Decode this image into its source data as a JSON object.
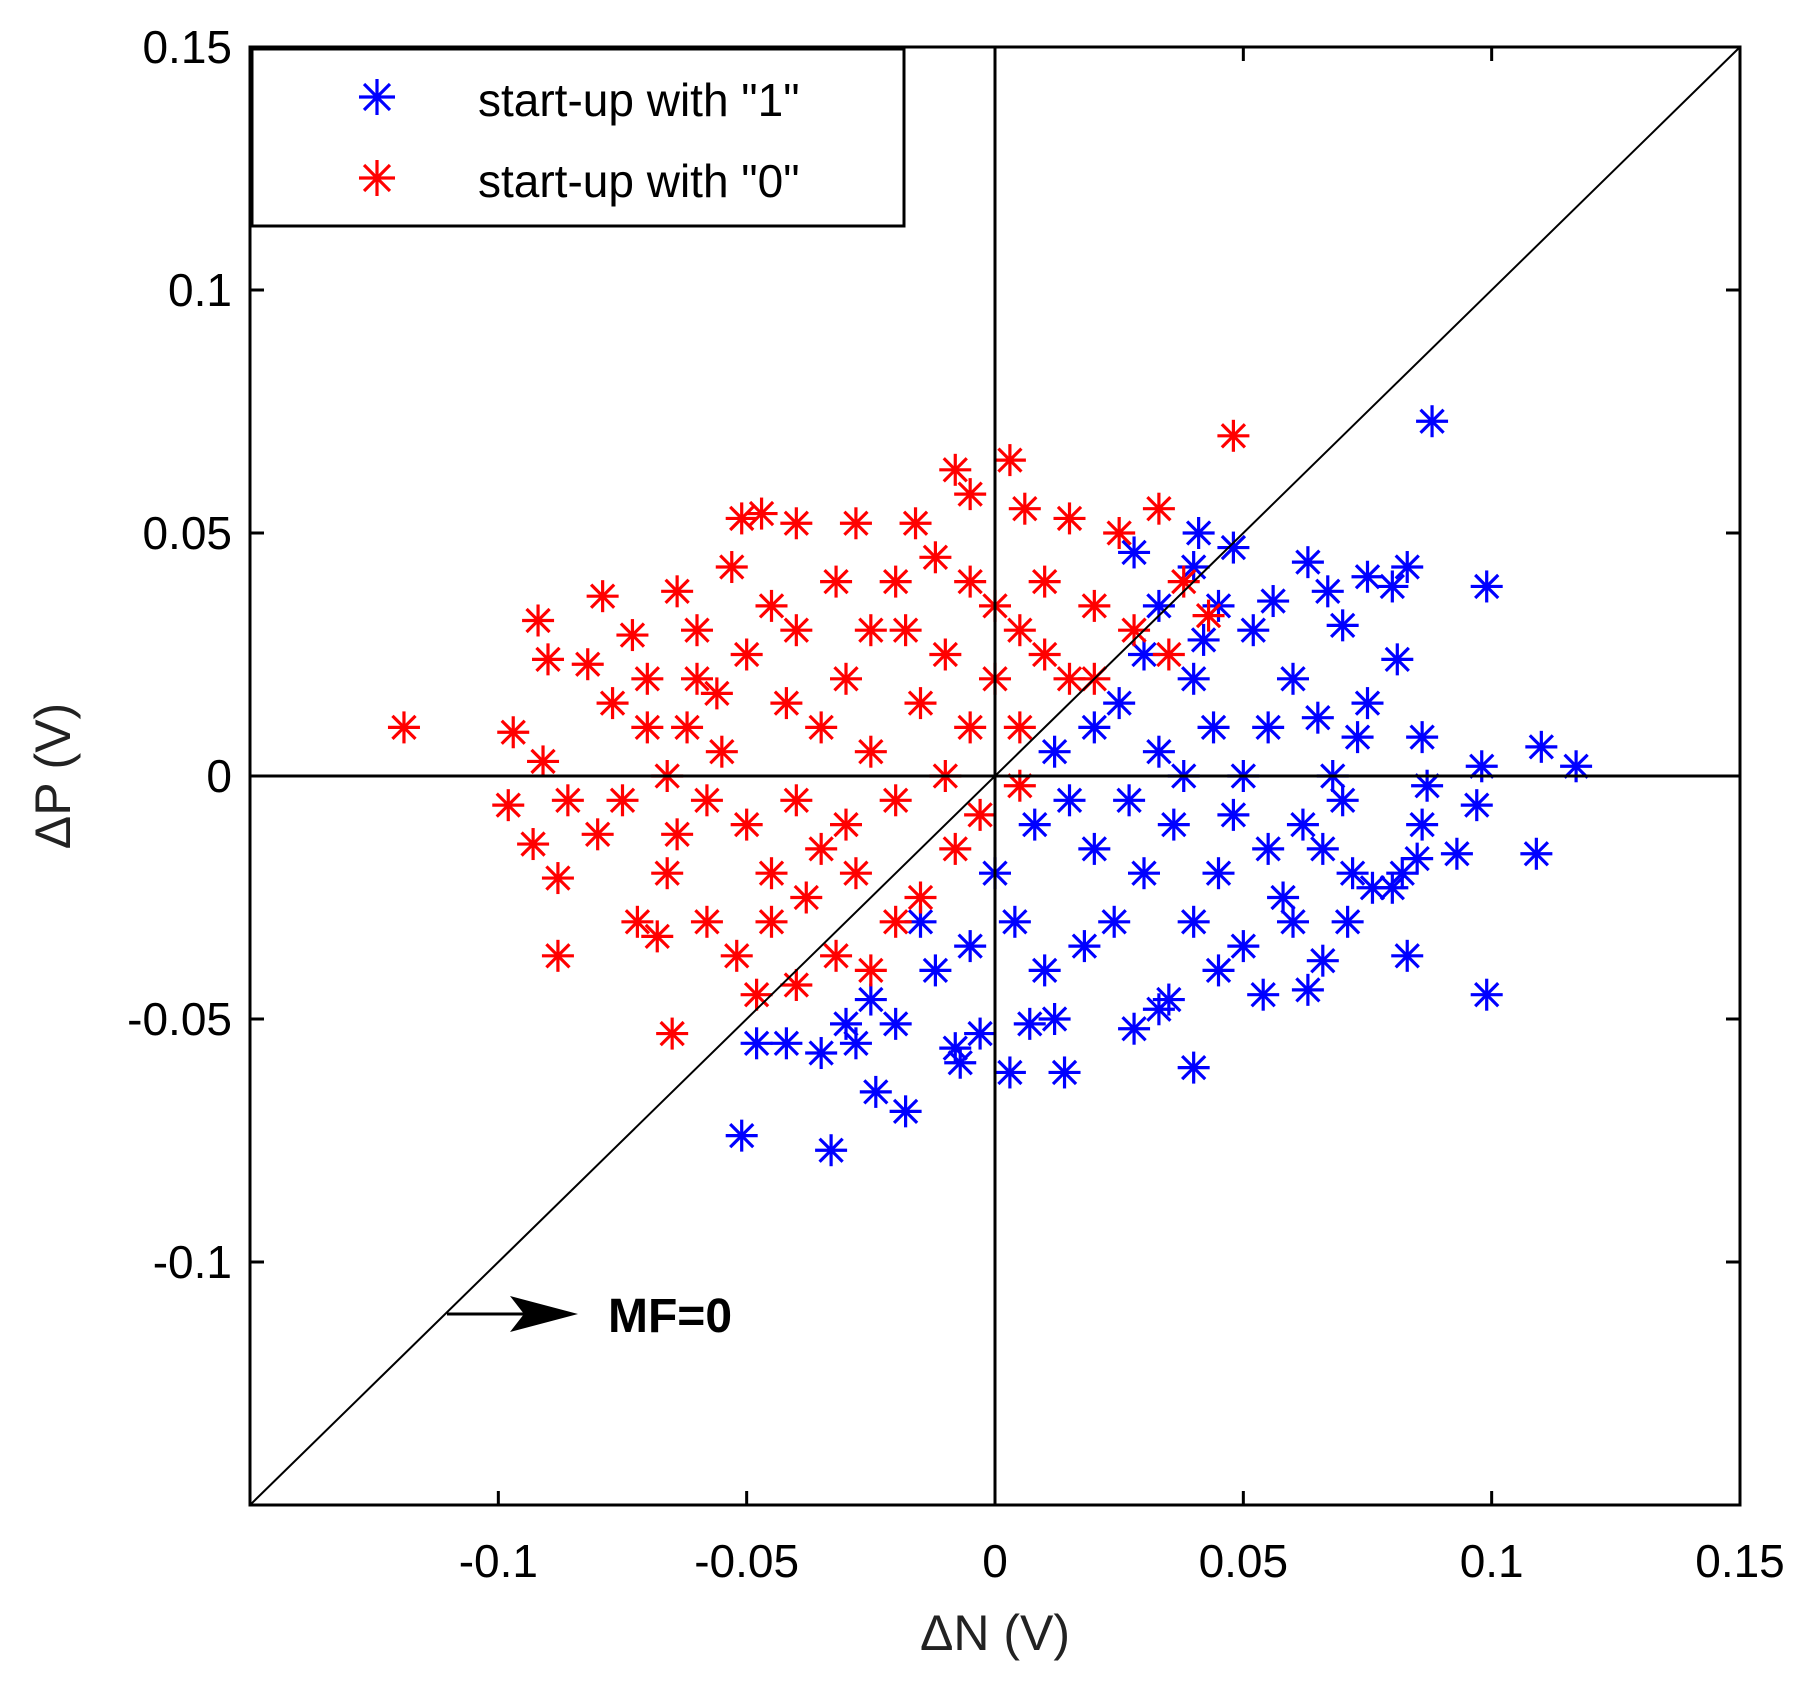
{
  "chart_data": {
    "type": "scatter",
    "title": "",
    "xlabel": "ΔN (V)",
    "ylabel": "ΔP (V)",
    "xlim": [
      -0.15,
      0.15
    ],
    "ylim": [
      -0.15,
      0.15
    ],
    "xticks": [
      -0.1,
      -0.05,
      0,
      0.05,
      0.1,
      0.15
    ],
    "yticks": [
      -0.1,
      -0.05,
      0,
      0.05,
      0.1,
      0.15
    ],
    "xtick_labels": [
      "-0.1",
      "-0.05",
      "0",
      "0.05",
      "0.1",
      "0.15"
    ],
    "ytick_labels": [
      "-0.1",
      "-0.05",
      "0",
      "0.05",
      "0.1",
      "0.15"
    ],
    "grid": false,
    "legend_position": "top-left",
    "marker": "asterisk",
    "reference_lines": [
      {
        "type": "diagonal",
        "equation": "y = x"
      },
      {
        "type": "horizontal",
        "value": 0
      },
      {
        "type": "vertical",
        "value": 0
      }
    ],
    "annotation": {
      "text": "MF=0",
      "points_to": [
        -0.11,
        -0.11
      ]
    },
    "series": [
      {
        "name": "start-up with \"1\"",
        "color": "#0000ff",
        "points": [
          [
            0.088,
            0.073
          ],
          [
            0.099,
            0.039
          ],
          [
            0.117,
            0.002
          ],
          [
            0.11,
            0.006
          ],
          [
            0.109,
            -0.016
          ],
          [
            0.099,
            -0.045
          ],
          [
            0.083,
            -0.037
          ],
          [
            0.097,
            -0.006
          ],
          [
            0.093,
            -0.016
          ],
          [
            0.098,
            0.002
          ],
          [
            0.083,
            0.043
          ],
          [
            0.075,
            0.041
          ],
          [
            0.08,
            0.039
          ],
          [
            0.067,
            0.038
          ],
          [
            0.063,
            0.044
          ],
          [
            0.048,
            0.047
          ],
          [
            0.041,
            0.05
          ],
          [
            0.04,
            0.043
          ],
          [
            0.028,
            0.046
          ],
          [
            0.07,
            0.031
          ],
          [
            0.081,
            0.024
          ],
          [
            0.086,
            0.008
          ],
          [
            0.087,
            -0.002
          ],
          [
            0.086,
            -0.01
          ],
          [
            0.085,
            -0.017
          ],
          [
            0.082,
            -0.02
          ],
          [
            0.08,
            -0.023
          ],
          [
            0.076,
            -0.023
          ],
          [
            0.072,
            -0.02
          ],
          [
            0.063,
            -0.044
          ],
          [
            0.054,
            -0.045
          ],
          [
            0.04,
            -0.06
          ],
          [
            0.035,
            -0.046
          ],
          [
            0.033,
            -0.048
          ],
          [
            0.028,
            -0.052
          ],
          [
            0.014,
            -0.061
          ],
          [
            0.003,
            -0.061
          ],
          [
            -0.007,
            -0.059
          ],
          [
            -0.008,
            -0.056
          ],
          [
            -0.003,
            -0.053
          ],
          [
            0.007,
            -0.051
          ],
          [
            0.012,
            -0.05
          ],
          [
            -0.018,
            -0.069
          ],
          [
            -0.024,
            -0.065
          ],
          [
            -0.033,
            -0.077
          ],
          [
            -0.051,
            -0.074
          ],
          [
            -0.048,
            -0.055
          ],
          [
            -0.042,
            -0.055
          ],
          [
            -0.035,
            -0.057
          ],
          [
            -0.028,
            -0.055
          ],
          [
            -0.03,
            -0.051
          ],
          [
            -0.02,
            -0.051
          ],
          [
            -0.025,
            -0.046
          ],
          [
            0.05,
            -0.035
          ],
          [
            0.06,
            -0.03
          ],
          [
            0.066,
            -0.038
          ],
          [
            0.071,
            -0.03
          ],
          [
            0.045,
            -0.02
          ],
          [
            0.055,
            0.01
          ],
          [
            0.06,
            0.02
          ],
          [
            0.065,
            0.012
          ],
          [
            0.073,
            0.008
          ],
          [
            0.075,
            0.015
          ],
          [
            0.07,
            -0.005
          ],
          [
            0.062,
            -0.01
          ],
          [
            0.052,
            0.03
          ],
          [
            0.045,
            0.035
          ],
          [
            0.056,
            0.036
          ],
          [
            0.033,
            0.035
          ],
          [
            0.03,
            0.025
          ],
          [
            0.04,
            0.02
          ],
          [
            0.044,
            0.01
          ],
          [
            0.038,
            0.0
          ],
          [
            0.048,
            -0.008
          ],
          [
            0.05,
            0.0
          ],
          [
            0.036,
            -0.01
          ],
          [
            0.03,
            -0.02
          ],
          [
            0.024,
            -0.03
          ],
          [
            0.018,
            -0.035
          ],
          [
            0.01,
            -0.04
          ],
          [
            0.004,
            -0.03
          ],
          [
            -0.005,
            -0.035
          ],
          [
            -0.012,
            -0.04
          ],
          [
            -0.015,
            -0.03
          ],
          [
            0.0,
            -0.02
          ],
          [
            0.008,
            -0.01
          ],
          [
            0.015,
            -0.005
          ],
          [
            0.02,
            0.01
          ],
          [
            0.012,
            0.005
          ],
          [
            0.025,
            0.015
          ],
          [
            0.02,
            -0.015
          ],
          [
            0.027,
            -0.005
          ],
          [
            0.033,
            0.005
          ],
          [
            0.04,
            -0.03
          ],
          [
            0.045,
            -0.04
          ],
          [
            0.058,
            -0.025
          ],
          [
            0.066,
            -0.015
          ],
          [
            0.068,
            0.0
          ],
          [
            0.055,
            -0.015
          ],
          [
            0.042,
            0.028
          ]
        ]
      },
      {
        "name": "start-up with \"0\"",
        "color": "#ff0000",
        "points": [
          [
            -0.119,
            0.01
          ],
          [
            -0.097,
            0.009
          ],
          [
            -0.098,
            -0.006
          ],
          [
            -0.093,
            -0.014
          ],
          [
            -0.088,
            -0.021
          ],
          [
            -0.09,
            0.024
          ],
          [
            -0.092,
            0.032
          ],
          [
            -0.091,
            0.003
          ],
          [
            -0.086,
            -0.005
          ],
          [
            -0.08,
            -0.012
          ],
          [
            -0.082,
            0.023
          ],
          [
            -0.079,
            0.037
          ],
          [
            -0.073,
            0.029
          ],
          [
            -0.077,
            0.015
          ],
          [
            -0.07,
            0.01
          ],
          [
            -0.072,
            -0.03
          ],
          [
            -0.068,
            -0.033
          ],
          [
            -0.065,
            -0.053
          ],
          [
            -0.088,
            -0.037
          ],
          [
            -0.064,
            0.038
          ],
          [
            -0.051,
            0.053
          ],
          [
            -0.047,
            0.054
          ],
          [
            -0.04,
            0.052
          ],
          [
            -0.028,
            0.052
          ],
          [
            -0.016,
            0.052
          ],
          [
            -0.008,
            0.063
          ],
          [
            -0.005,
            0.058
          ],
          [
            0.003,
            0.065
          ],
          [
            0.006,
            0.055
          ],
          [
            0.015,
            0.053
          ],
          [
            0.025,
            0.05
          ],
          [
            0.033,
            0.055
          ],
          [
            0.048,
            0.07
          ],
          [
            -0.053,
            0.043
          ],
          [
            -0.06,
            0.03
          ],
          [
            -0.056,
            0.017
          ],
          [
            -0.062,
            0.01
          ],
          [
            -0.066,
            0.0
          ],
          [
            -0.064,
            -0.012
          ],
          [
            -0.066,
            -0.02
          ],
          [
            -0.058,
            -0.03
          ],
          [
            -0.052,
            -0.037
          ],
          [
            -0.048,
            -0.045
          ],
          [
            -0.04,
            -0.043
          ],
          [
            -0.032,
            -0.037
          ],
          [
            -0.02,
            -0.03
          ],
          [
            -0.015,
            -0.025
          ],
          [
            -0.025,
            -0.04
          ],
          [
            -0.045,
            -0.02
          ],
          [
            -0.04,
            -0.005
          ],
          [
            -0.035,
            0.01
          ],
          [
            -0.03,
            0.02
          ],
          [
            -0.025,
            0.03
          ],
          [
            -0.02,
            0.04
          ],
          [
            -0.012,
            0.045
          ],
          [
            -0.005,
            0.04
          ],
          [
            0.0,
            0.035
          ],
          [
            0.005,
            0.03
          ],
          [
            0.01,
            0.025
          ],
          [
            0.015,
            0.02
          ],
          [
            0.02,
            0.02
          ],
          [
            0.028,
            0.03
          ],
          [
            0.035,
            0.025
          ],
          [
            0.038,
            0.04
          ],
          [
            0.043,
            0.033
          ],
          [
            -0.045,
            0.035
          ],
          [
            -0.05,
            0.025
          ],
          [
            -0.055,
            0.005
          ],
          [
            -0.05,
            -0.01
          ],
          [
            -0.045,
            -0.03
          ],
          [
            -0.038,
            -0.025
          ],
          [
            -0.03,
            -0.01
          ],
          [
            -0.02,
            -0.005
          ],
          [
            -0.01,
            0.0
          ],
          [
            -0.005,
            0.01
          ],
          [
            -0.015,
            0.015
          ],
          [
            -0.01,
            0.025
          ],
          [
            0.0,
            0.02
          ],
          [
            0.005,
            0.01
          ],
          [
            -0.025,
            0.005
          ],
          [
            -0.035,
            -0.015
          ],
          [
            -0.008,
            -0.015
          ],
          [
            -0.003,
            -0.008
          ],
          [
            0.005,
            -0.002
          ],
          [
            -0.06,
            0.02
          ],
          [
            -0.07,
            0.02
          ],
          [
            -0.075,
            -0.005
          ],
          [
            -0.058,
            -0.005
          ],
          [
            -0.042,
            0.015
          ],
          [
            -0.032,
            0.04
          ],
          [
            -0.018,
            0.03
          ],
          [
            -0.04,
            0.03
          ],
          [
            0.01,
            0.04
          ],
          [
            0.02,
            0.035
          ],
          [
            -0.028,
            -0.02
          ]
        ]
      }
    ]
  }
}
